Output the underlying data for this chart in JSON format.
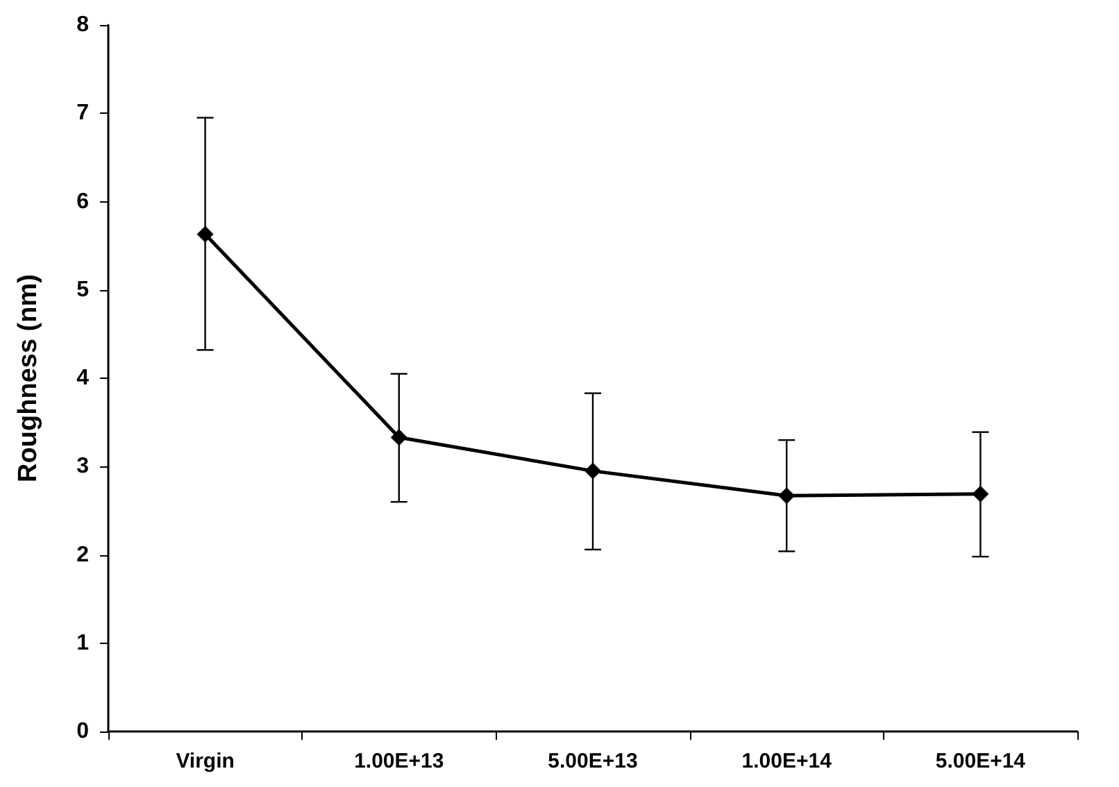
{
  "chart_data": {
    "type": "line",
    "ylabel": "Roughness (nm)",
    "categories": [
      "Virgin",
      "1.00E+13",
      "5.00E+13",
      "1.00E+14",
      "5.00E+14"
    ],
    "series": [
      {
        "color": "#000000",
        "values": [
          5.63,
          3.33,
          2.95,
          2.67,
          2.69
        ],
        "errors": [
          [
            4.32,
            6.95
          ],
          [
            2.6,
            4.05
          ],
          [
            2.06,
            3.83
          ],
          [
            2.04,
            3.3
          ],
          [
            1.98,
            3.39
          ]
        ]
      }
    ],
    "ylim": [
      0,
      8
    ],
    "yticks": [
      0,
      1,
      2,
      3,
      4,
      5,
      6,
      7,
      8
    ],
    "grid": false,
    "marker": "diamond",
    "line_style": "solid"
  }
}
